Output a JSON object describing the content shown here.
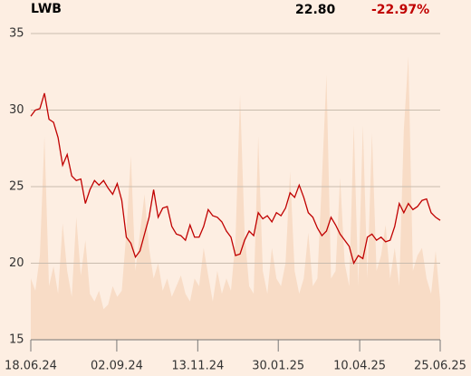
{
  "header": {
    "ticker": "LWB",
    "price": "22.80",
    "change": "-22.97%"
  },
  "chart_data": {
    "type": "line",
    "xlim": [
      0,
      90
    ],
    "xticks": [
      {
        "value": 0,
        "label": "18.06.24"
      },
      {
        "value": 18.9,
        "label": "02.09.24"
      },
      {
        "value": 36.7,
        "label": "13.11.24"
      },
      {
        "value": 54.4,
        "label": "30.01.25"
      },
      {
        "value": 72.3,
        "label": "10.04.25"
      },
      {
        "value": 90,
        "label": "25.06.25"
      }
    ],
    "ylim": [
      15,
      35
    ],
    "yticks": [
      15,
      20,
      25,
      30,
      35
    ],
    "grid": true,
    "series": [
      {
        "type": "area",
        "color": "#f8dcc6",
        "values": [
          19.0,
          18.2,
          20.5,
          28.3,
          18.5,
          19.8,
          18.0,
          22.6,
          19.5,
          17.8,
          23.0,
          19.2,
          21.5,
          18.0,
          17.5,
          18.2,
          17.0,
          17.3,
          18.5,
          17.8,
          18.2,
          22.0,
          27.0,
          19.5,
          22.0,
          24.5,
          21.0,
          19.0,
          20.0,
          18.2,
          19.0,
          17.8,
          18.5,
          19.2,
          18.0,
          17.5,
          19.0,
          18.5,
          21.0,
          19.2,
          17.5,
          19.5,
          18.0,
          19.0,
          18.2,
          21.5,
          31.0,
          22.0,
          18.5,
          18.0,
          28.3,
          19.5,
          18.0,
          21.0,
          19.0,
          18.5,
          20.0,
          26.0,
          19.5,
          18.0,
          19.0,
          22.0,
          18.5,
          19.0,
          25.5,
          32.3,
          19.0,
          19.5,
          25.6,
          20.0,
          18.5,
          29.0,
          18.5,
          29.0,
          19.0,
          28.5,
          19.5,
          20.5,
          22.5,
          19.0,
          21.0,
          18.5,
          28.7,
          33.5,
          19.5,
          20.5,
          21.0,
          19.0,
          18.0,
          20.8,
          17.5
        ]
      },
      {
        "type": "line",
        "color": "#c00000",
        "values": [
          29.6,
          30.0,
          30.1,
          31.1,
          29.4,
          29.2,
          28.2,
          26.4,
          27.1,
          25.7,
          25.4,
          25.5,
          23.9,
          24.8,
          25.4,
          25.1,
          25.4,
          24.9,
          24.5,
          25.2,
          24.1,
          21.7,
          21.3,
          20.4,
          20.8,
          21.9,
          23.0,
          24.8,
          23.0,
          23.6,
          23.7,
          22.4,
          21.9,
          21.8,
          21.5,
          22.5,
          21.7,
          21.7,
          22.4,
          23.5,
          23.1,
          23.0,
          22.7,
          22.1,
          21.7,
          20.5,
          20.6,
          21.5,
          22.1,
          21.8,
          23.3,
          22.9,
          23.1,
          22.7,
          23.3,
          23.1,
          23.6,
          24.6,
          24.3,
          25.1,
          24.3,
          23.3,
          23.0,
          22.3,
          21.8,
          22.1,
          23.0,
          22.5,
          21.9,
          21.5,
          21.1,
          20.0,
          20.5,
          20.3,
          21.7,
          21.9,
          21.5,
          21.7,
          21.4,
          21.5,
          22.4,
          23.9,
          23.3,
          23.9,
          23.5,
          23.7,
          24.1,
          24.2,
          23.3,
          23.0,
          22.8
        ]
      }
    ]
  }
}
